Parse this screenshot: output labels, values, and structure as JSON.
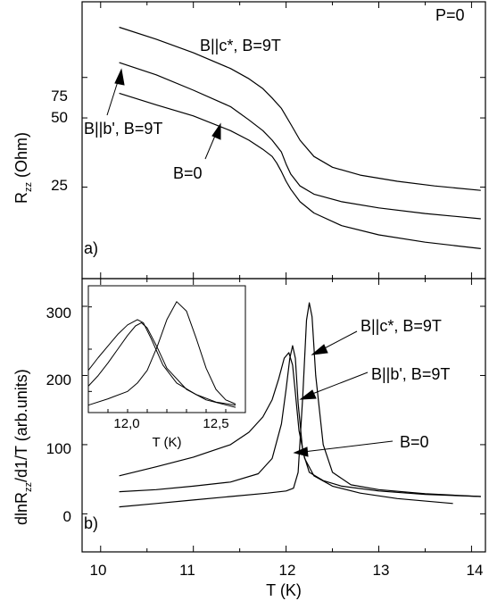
{
  "chart_data": [
    {
      "id": "top",
      "type": "line",
      "panel_label": "a)",
      "corner_text": "P=0",
      "ylabel_main": "R",
      "ylabel_sub": "zz",
      "ylabel_unit": " (Ohm)",
      "xlim": [
        9.8,
        14.15
      ],
      "y_scale": "log",
      "ylim": [
        10,
        160
      ],
      "yticks": [
        25,
        50,
        75
      ],
      "series": [
        {
          "name": "B||c*, B=9T",
          "x": [
            10.2,
            10.6,
            11.0,
            11.4,
            11.6,
            11.75,
            11.85,
            11.95,
            12.05,
            12.15,
            12.3,
            12.5,
            12.8,
            13.2,
            13.6,
            14.1
          ],
          "y": [
            124,
            110,
            96,
            82,
            74,
            67,
            61,
            55,
            47,
            40,
            34,
            30.5,
            28.2,
            26.5,
            25.3,
            24.2
          ]
        },
        {
          "name": "B||b', B=9T",
          "x": [
            10.2,
            10.6,
            11.0,
            11.4,
            11.6,
            11.75,
            11.85,
            11.95,
            12.0,
            12.05,
            12.15,
            12.3,
            12.6,
            13.0,
            13.5,
            14.1
          ],
          "y": [
            87,
            77,
            66,
            56,
            49,
            44,
            40,
            35.5,
            31.5,
            28.5,
            25.3,
            23.3,
            21.6,
            20.3,
            19.2,
            18.2
          ]
        },
        {
          "name": "B=0",
          "x": [
            10.2,
            10.6,
            11.0,
            11.4,
            11.6,
            11.75,
            11.85,
            11.9,
            11.95,
            12.0,
            12.05,
            12.15,
            12.3,
            12.6,
            13.0,
            13.5,
            14.1
          ],
          "y": [
            64,
            57,
            51,
            44,
            40,
            36.5,
            34,
            31.8,
            29.2,
            26.5,
            24.5,
            21.6,
            19.3,
            17.0,
            15.5,
            14.4,
            13.5
          ]
        }
      ],
      "annotations": [
        {
          "text": "B||c*, B=9T"
        },
        {
          "text": "B||b', B=9T"
        },
        {
          "text": "B=0"
        }
      ]
    },
    {
      "id": "bottom",
      "type": "line",
      "panel_label": "b)",
      "xlabel": "T (K)",
      "ylabel_main": "dlnR",
      "ylabel_sub": "zz",
      "ylabel_unit": "/d1/T (arb.units)",
      "xlim": [
        9.8,
        14.15
      ],
      "xticks": [
        10,
        11,
        12,
        13,
        14
      ],
      "ylim": [
        -55,
        340
      ],
      "yticks": [
        0,
        100,
        200,
        300
      ],
      "series": [
        {
          "name": "B||c*, B=9T",
          "x": [
            10.2,
            10.6,
            11.0,
            11.4,
            11.8,
            12.0,
            12.08,
            12.13,
            12.18,
            12.22,
            12.25,
            12.28,
            12.32,
            12.4,
            12.5,
            12.7,
            13.0,
            13.5,
            14.1
          ],
          "y": [
            10,
            15,
            20,
            25,
            30,
            33,
            37,
            60,
            170,
            280,
            305,
            285,
            200,
            100,
            60,
            42,
            35,
            29,
            25
          ]
        },
        {
          "name": "B||b', B=9T",
          "x": [
            10.2,
            10.6,
            11.0,
            11.4,
            11.7,
            11.85,
            11.95,
            12.0,
            12.04,
            12.07,
            12.1,
            12.13,
            12.18,
            12.25,
            12.4,
            12.6,
            13.0,
            13.5,
            14.1
          ],
          "y": [
            32,
            35,
            40,
            46,
            58,
            80,
            130,
            180,
            225,
            243,
            225,
            160,
            90,
            60,
            48,
            40,
            33,
            28,
            25
          ]
        },
        {
          "name": "B=0",
          "x": [
            10.2,
            10.6,
            11.0,
            11.4,
            11.6,
            11.75,
            11.85,
            11.92,
            11.98,
            12.03,
            12.07,
            12.1,
            12.14,
            12.2,
            12.3,
            12.5,
            12.8,
            13.2,
            13.8
          ],
          "y": [
            55,
            68,
            82,
            100,
            118,
            140,
            165,
            195,
            225,
            233,
            215,
            175,
            120,
            80,
            55,
            40,
            30,
            22,
            15
          ]
        }
      ],
      "annotations": [
        {
          "text": "B||c*, B=9T"
        },
        {
          "text": "B||b', B=9T"
        },
        {
          "text": "B=0"
        }
      ]
    },
    {
      "id": "inset",
      "type": "line",
      "xlabel": "T (K)",
      "xlim": [
        11.8,
        12.6
      ],
      "xticks": [
        12.0,
        12.5
      ],
      "xtick_labels": [
        "12,0",
        "12,5"
      ],
      "ylim": [
        200,
        320
      ],
      "series": [
        {
          "name": "B||c*, B=9T",
          "x": [
            11.8,
            11.9,
            12.0,
            12.05,
            12.1,
            12.15,
            12.2,
            12.25,
            12.3,
            12.35,
            12.4,
            12.45,
            12.5,
            12.55
          ],
          "y": [
            207,
            213,
            220,
            228,
            240,
            262,
            288,
            305,
            296,
            270,
            242,
            222,
            212,
            208
          ]
        },
        {
          "name": "B||b', B=9T",
          "x": [
            11.8,
            11.85,
            11.9,
            11.95,
            12.0,
            12.04,
            12.07,
            12.1,
            12.15,
            12.2,
            12.3,
            12.4,
            12.55
          ],
          "y": [
            225,
            235,
            247,
            260,
            273,
            282,
            285,
            280,
            262,
            242,
            222,
            212,
            205
          ]
        },
        {
          "name": "B=0",
          "x": [
            11.8,
            11.85,
            11.9,
            11.95,
            12.0,
            12.05,
            12.08,
            12.12,
            12.18,
            12.25,
            12.35,
            12.45,
            12.55
          ],
          "y": [
            240,
            252,
            263,
            274,
            283,
            288,
            285,
            270,
            245,
            228,
            217,
            210,
            207
          ]
        }
      ]
    }
  ]
}
